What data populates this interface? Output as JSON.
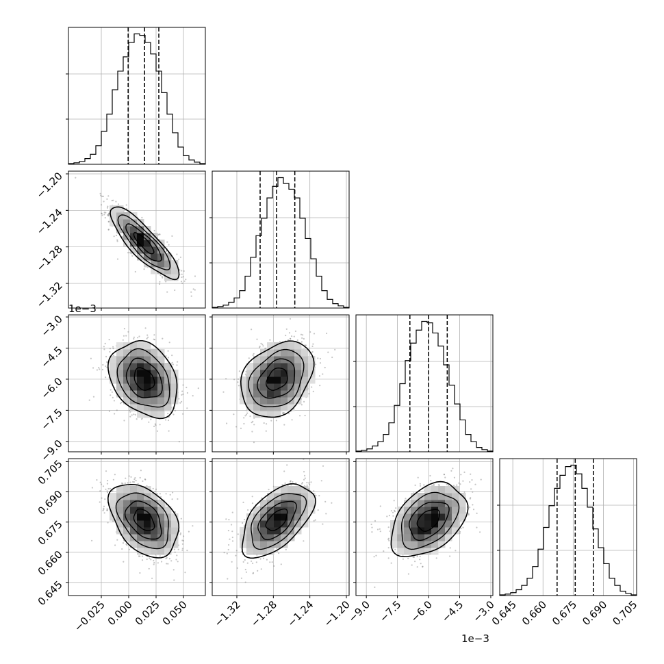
{
  "chart_data": {
    "type": "corner",
    "description_free": true,
    "parameters": [
      {
        "index": 0,
        "range": [
          -0.055,
          0.07
        ],
        "ticks": [
          "-0.025",
          "0.000",
          "0.025",
          "0.050"
        ],
        "tick_values": [
          -0.025,
          0.0,
          0.025,
          0.05
        ],
        "offset": "",
        "quantiles": [
          -0.0005,
          0.0145,
          0.0275
        ],
        "mean": 0.014,
        "std": 0.0155,
        "hist": [
          0.5,
          1,
          2,
          4,
          7,
          13,
          23,
          35,
          52,
          65,
          75,
          85,
          91,
          90,
          85,
          77,
          65,
          50,
          35,
          22,
          12,
          6,
          3,
          1.5,
          0.5
        ]
      },
      {
        "index": 1,
        "range": [
          -1.347,
          -1.197
        ],
        "ticks": [
          "-1.32",
          "-1.28",
          "-1.24",
          "-1.20"
        ],
        "tick_values": [
          -1.32,
          -1.28,
          -1.24,
          -1.2
        ],
        "offset": "",
        "quantiles": [
          -1.2945,
          -1.2765,
          -1.2565
        ],
        "mean": -1.276,
        "std": 0.0195,
        "hist": [
          0.5,
          1,
          2,
          4,
          7,
          12,
          22,
          35,
          50,
          62,
          76,
          84,
          90,
          86,
          82,
          76,
          62,
          48,
          34,
          22,
          12,
          6,
          3,
          1.5,
          0.5
        ]
      },
      {
        "index": 2,
        "range": [
          -9.5,
          -2.9
        ],
        "ticks": [
          "-9.0",
          "-7.5",
          "-6.0",
          "-4.5",
          "-3.0"
        ],
        "tick_values": [
          -9.0,
          -7.5,
          -6.0,
          -4.5,
          -3.0
        ],
        "offset": "1e−3",
        "quantiles": [
          -6.9,
          -6.0,
          -5.1
        ],
        "mean": -6.0,
        "std": 0.9,
        "hist": [
          0.5,
          1,
          2,
          4,
          7,
          12,
          20,
          32,
          47,
          63,
          75,
          84,
          90,
          89,
          82,
          73,
          60,
          46,
          33,
          22,
          12,
          7,
          3,
          1.5,
          0.5
        ]
      },
      {
        "index": 3,
        "range": [
          0.6385,
          0.7065
        ],
        "ticks": [
          "0.645",
          "0.660",
          "0.675",
          "0.690",
          "0.705"
        ],
        "tick_values": [
          0.645,
          0.66,
          0.675,
          0.69,
          0.705
        ],
        "offset": "",
        "quantiles": [
          0.667,
          0.676,
          0.685
        ],
        "mean": 0.676,
        "std": 0.009,
        "hist": [
          0.5,
          1,
          2,
          4,
          7,
          12,
          20,
          32,
          47,
          62,
          74,
          83,
          89,
          90,
          84,
          74,
          61,
          46,
          33,
          22,
          12,
          7,
          3,
          1.5,
          0.5
        ]
      }
    ],
    "correlations": [
      {
        "i": 1,
        "j": 0,
        "rho": -0.85
      },
      {
        "i": 2,
        "j": 0,
        "rho": -0.28
      },
      {
        "i": 2,
        "j": 1,
        "rho": 0.3
      },
      {
        "i": 3,
        "j": 0,
        "rho": -0.4
      },
      {
        "i": 3,
        "j": 1,
        "rho": 0.55
      },
      {
        "i": 3,
        "j": 2,
        "rho": 0.4
      }
    ],
    "contour_levels_sigma": [
      0.5,
      1.0,
      1.5,
      2.0
    ],
    "grid": true,
    "colors": {
      "ink": "#000000",
      "grid": "#b0b0b0",
      "points": "#7f7f7f"
    }
  }
}
